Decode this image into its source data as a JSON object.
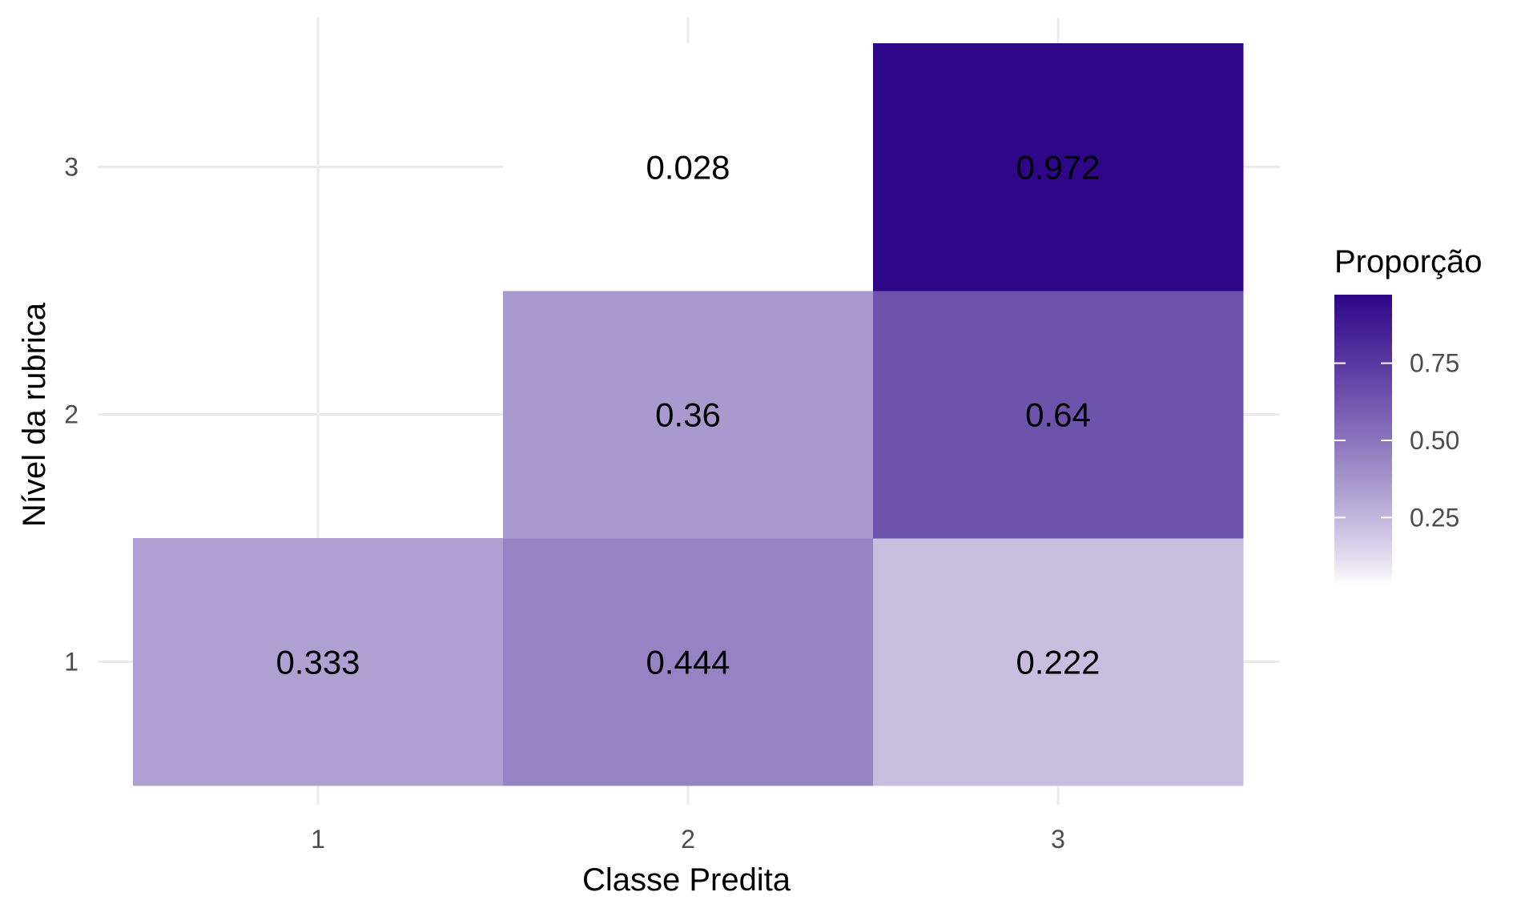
{
  "chart_data": {
    "type": "heatmap",
    "title": "",
    "xlabel": "Classe Predita",
    "ylabel": "Nível da rubrica",
    "x_categories": [
      "1",
      "2",
      "3"
    ],
    "y_categories": [
      "1",
      "2",
      "3"
    ],
    "cells": [
      {
        "x": "1",
        "y": "1",
        "value": 0.333,
        "label": "0.333"
      },
      {
        "x": "2",
        "y": "1",
        "value": 0.444,
        "label": "0.444"
      },
      {
        "x": "3",
        "y": "1",
        "value": 0.222,
        "label": "0.222"
      },
      {
        "x": "2",
        "y": "2",
        "value": 0.36,
        "label": "0.36"
      },
      {
        "x": "3",
        "y": "2",
        "value": 0.64,
        "label": "0.64"
      },
      {
        "x": "2",
        "y": "3",
        "value": 0.028,
        "label": "0.028"
      },
      {
        "x": "3",
        "y": "3",
        "value": 0.972,
        "label": "0.972"
      }
    ],
    "legend": {
      "title": "Proporção",
      "placement": "right",
      "range": [
        0.028,
        0.972
      ],
      "ticks": [
        {
          "value": 0.25,
          "label": "0.25"
        },
        {
          "value": 0.5,
          "label": "0.50"
        },
        {
          "value": 0.75,
          "label": "0.75"
        }
      ],
      "low_color": "#ffffff",
      "high_color": "#2e0688"
    },
    "grid": true
  }
}
